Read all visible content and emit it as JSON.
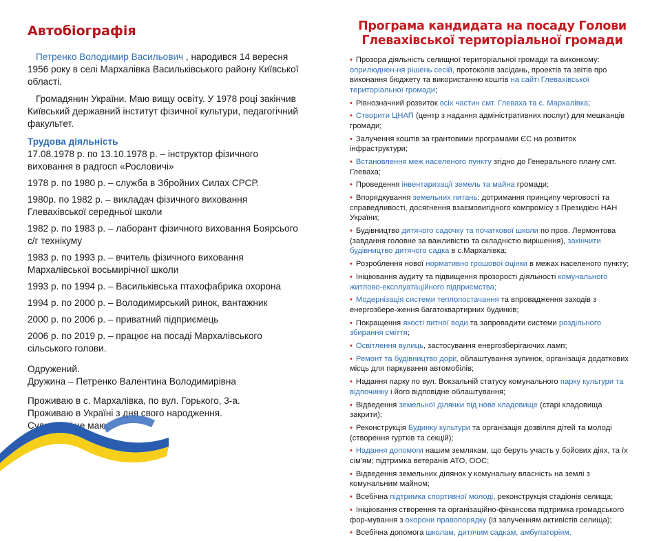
{
  "left": {
    "title": "Автобіографія",
    "intro_name": "Петренко Володимир Васильович",
    "intro_rest": " , народився 14 вересня 1956 року в селі Мархалівка Васильківського району Київської області.",
    "education": "Громадянин України. Маю вищу освіту. У 1978 році закінчив Київський державний інститут фізичної культури, педагогічний факультет.",
    "work_heading": "Трудова діяльність",
    "work": [
      "17.08.1978 р. по 13.10.1978 р. – інструктор фізичного виховання в радгосп «Рословичі»",
      "1978 р. по 1980 р. – служба в Збройних Силах СРСР.",
      "1980р. по 1982 р. – викладач фізичного виховання Глевахівської середньої школи",
      "1982 р. по 1983 р. – лаборант фізичного виховання Боярсього с/г технікуму",
      "1983 р. по 1993 р. – вчитель фізичного виховання Мархалівської восьмирічної школи",
      "1993 р. по 1994 р. – Васильківська птахофабрика охорона",
      "1994 р. по 2000 р. – Володимирський ринок, вантажник",
      "2000 р. по 2006 р. – приватний підприємець",
      "2006 р. по 2019 р. – працює на посаді Мархалівського сільського голови."
    ],
    "family": [
      "Одружений.",
      "Дружина – Петренко Валентина Володимирівна"
    ],
    "residence": [
      "Проживаю в с. Мархалівка, по вул. Горького, 3-а.",
      "Проживаю в Україні з дня свого народження.",
      "Судимості не маю."
    ]
  },
  "right": {
    "title_line1": "Програма кандидата на посаду Голови",
    "title_line2": "Глевахівської територіальної громади",
    "bullets": [
      [
        [
          "Прозора діяльність селищної територіальної громади та виконкому: ",
          0
        ],
        [
          "оприлюднен-ня рішень сесій,",
          1
        ],
        [
          " протоколів засідань, проектів та звітів про виконання бюджету та використанню коштів ",
          0
        ],
        [
          "на сайті Глевахівської територіальної громади",
          1
        ],
        [
          ";",
          0
        ]
      ],
      [
        [
          "Рівнозначний розвиток ",
          0
        ],
        [
          "всіх частин смт. Глеваха та с. Мархалівка",
          1
        ],
        [
          ";",
          0
        ]
      ],
      [
        [
          "Створити ЦНАП",
          1
        ],
        [
          " (центр з надання адміністративних послуг) для мешканців громади;",
          0
        ]
      ],
      [
        [
          "Залучення коштів за грантовими програмами ЄС на розвиток інфраструктури;",
          0
        ]
      ],
      [
        [
          "Встановлення меж населеного пункту",
          1
        ],
        [
          " згідно до Генерального плану смт. Глеваха;",
          0
        ]
      ],
      [
        [
          "Проведення ",
          0
        ],
        [
          "інвентаризації земель та майна",
          1
        ],
        [
          " громади;",
          0
        ]
      ],
      [
        [
          "Впорядкування ",
          0
        ],
        [
          "земельних питань",
          1
        ],
        [
          ": дотримання принципу черговості та справедливості, досягнення взаємовигідного компромісу з Президією НАН України;",
          0
        ]
      ],
      [
        [
          "Будівництво ",
          0
        ],
        [
          "дитячого садочку та початкової школи",
          1
        ],
        [
          " по пров. Лермонтова (завдання головне за важливістю та складністю вирішення), ",
          0
        ],
        [
          "закінчити будівництво дитячого садка",
          1
        ],
        [
          " в с.Мархалівка;",
          0
        ]
      ],
      [
        [
          "Розроблення нової ",
          0
        ],
        [
          "нормативно грошової оцінки",
          1
        ],
        [
          " в межах населеного пункту;",
          0
        ]
      ],
      [
        [
          "Ініціювання аудиту та підвищення прозорості діяльності ",
          0
        ],
        [
          "комунального житлово-експлуатаційного підприємства;",
          1
        ]
      ],
      [
        [
          "Модернізація системи теплопостачання",
          1
        ],
        [
          " та впровадження заходів з енергозбере-ження багатоквартирних будинків;",
          0
        ]
      ],
      [
        [
          "Покращення ",
          0
        ],
        [
          "якості питної води",
          1
        ],
        [
          " та запровадити системи ",
          0
        ],
        [
          "роздільного збирання сміття",
          1
        ],
        [
          ";",
          0
        ]
      ],
      [
        [
          "Освітлення вулиць",
          1
        ],
        [
          ", застосування енергозберігаючих ламп;",
          0
        ]
      ],
      [
        [
          "Ремонт та будівництво доріг",
          1
        ],
        [
          ", облаштування зупинок, організація додаткових місць для паркування автомобілів;",
          0
        ]
      ],
      [
        [
          "Надання парку по вул. Вокзальній статусу комунального ",
          0
        ],
        [
          "парку культури та відпочинку",
          1
        ],
        [
          " і  його відповідне облаштування;",
          0
        ]
      ],
      [
        [
          "Відведення ",
          0
        ],
        [
          "земельної ділянки під нове кладовище",
          1
        ],
        [
          " (старі кладовища закрити);",
          0
        ]
      ],
      [
        [
          "Реконструкція ",
          0
        ],
        [
          "Будинку культури",
          1
        ],
        [
          " та організація дозвілля дітей та молоді (створення гуртків та секцій);",
          0
        ]
      ],
      [
        [
          "Надання допомоги",
          1
        ],
        [
          " нашим землякам, що беруть участь у бойових діях, та їх сім'ям; підтримка ветеранів АТО, ООС;",
          0
        ]
      ],
      [
        [
          "Відведення земельних ділянок у комунальну власність на землі з комунальним майном;",
          0
        ]
      ],
      [
        [
          "Всебічна ",
          0
        ],
        [
          "підтримка спортивної молоді",
          1
        ],
        [
          ", реконструкція стадіонів селища;",
          0
        ]
      ],
      [
        [
          "Ініціювання створення та організаційно-фінансова підтримка громадського фор-мування з ",
          0
        ],
        [
          "охорони правопорядку",
          1
        ],
        [
          " (із залученням активістів селища);",
          0
        ]
      ],
      [
        [
          "Всебічна допомога ",
          0
        ],
        [
          "школам, дитячим садкам, амбулаторіям.",
          1
        ]
      ]
    ]
  },
  "colors": {
    "title_red": "#b3141c",
    "accent_blue": "#2f6eb5",
    "bullet_red": "#d0202a",
    "flag_blue": "#2a5db0",
    "flag_yellow": "#f5cf1a"
  },
  "decor": {
    "ribbon": "ukrainian-flag-ribbon"
  }
}
